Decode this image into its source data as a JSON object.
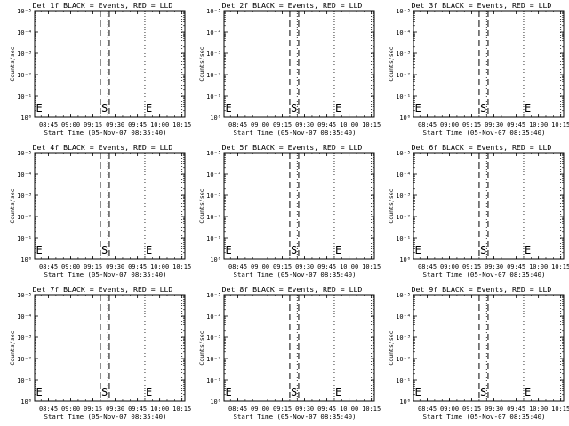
{
  "chart_data": [
    {
      "type": "line",
      "title": "Det 1f BLACK = Events, RED = LLD",
      "xlabel": "Start Time (05-Nov-07 08:35:40)",
      "ylabel": "Counts/sec",
      "xtick_labels": [
        "08:45",
        "09:00",
        "09:15",
        "09:30",
        "09:45",
        "10:00",
        "10:15"
      ],
      "ytick_labels": [
        "10⁰",
        "10⁻¹",
        "10⁻²",
        "10⁻³",
        "10⁻⁴",
        "10⁻⁵"
      ],
      "xlim": [
        "08:35:40",
        "10:17:00"
      ],
      "dotted_lines": [
        "08:35:40",
        "09:25:00",
        "09:50:00",
        "10:15:00"
      ],
      "dashed_lines": [
        "09:20:00",
        "09:26:00"
      ],
      "markers": [
        {
          "label": "E",
          "time": "08:36:00"
        },
        {
          "label": "S",
          "time": "09:20:00"
        },
        {
          "label": "E",
          "time": "09:50:00"
        }
      ],
      "series": []
    },
    {
      "type": "line",
      "title": "Det 2f BLACK = Events, RED = LLD",
      "xlabel": "Start Time (05-Nov-07 08:35:40)",
      "ylabel": "Counts/sec",
      "xtick_labels": [
        "08:45",
        "09:00",
        "09:15",
        "09:30",
        "09:45",
        "10:00",
        "10:15"
      ],
      "ytick_labels": [
        "10⁰",
        "10⁻¹",
        "10⁻²",
        "10⁻³",
        "10⁻⁴",
        "10⁻⁵"
      ],
      "xlim": [
        "08:35:40",
        "10:17:00"
      ],
      "dotted_lines": [
        "08:35:40",
        "09:25:00",
        "09:50:00",
        "10:15:00"
      ],
      "dashed_lines": [
        "09:20:00",
        "09:26:00"
      ],
      "markers": [
        {
          "label": "E",
          "time": "08:36:00"
        },
        {
          "label": "S",
          "time": "09:20:00"
        },
        {
          "label": "E",
          "time": "09:50:00"
        }
      ],
      "series": []
    },
    {
      "type": "line",
      "title": "Det 3f BLACK = Events, RED = LLD",
      "xlabel": "Start Time (05-Nov-07 08:35:40)",
      "ylabel": "Counts/sec",
      "xtick_labels": [
        "08:45",
        "09:00",
        "09:15",
        "09:30",
        "09:45",
        "10:00",
        "10:15"
      ],
      "ytick_labels": [
        "10⁰",
        "10⁻¹",
        "10⁻²",
        "10⁻³",
        "10⁻⁴",
        "10⁻⁵"
      ],
      "xlim": [
        "08:35:40",
        "10:17:00"
      ],
      "dotted_lines": [
        "08:35:40",
        "09:25:00",
        "09:50:00",
        "10:15:00"
      ],
      "dashed_lines": [
        "09:20:00",
        "09:26:00"
      ],
      "markers": [
        {
          "label": "E",
          "time": "08:36:00"
        },
        {
          "label": "S",
          "time": "09:20:00"
        },
        {
          "label": "E",
          "time": "09:50:00"
        }
      ],
      "series": []
    },
    {
      "type": "line",
      "title": "Det 4f BLACK = Events, RED = LLD",
      "xlabel": "Start Time (05-Nov-07 08:35:40)",
      "ylabel": "Counts/sec",
      "xtick_labels": [
        "08:45",
        "09:00",
        "09:15",
        "09:30",
        "09:45",
        "10:00",
        "10:15"
      ],
      "ytick_labels": [
        "10⁰",
        "10⁻¹",
        "10⁻²",
        "10⁻³",
        "10⁻⁴",
        "10⁻⁵"
      ],
      "xlim": [
        "08:35:40",
        "10:17:00"
      ],
      "dotted_lines": [
        "08:35:40",
        "09:25:00",
        "09:50:00",
        "10:15:00"
      ],
      "dashed_lines": [
        "09:20:00",
        "09:26:00"
      ],
      "markers": [
        {
          "label": "E",
          "time": "08:36:00"
        },
        {
          "label": "S",
          "time": "09:20:00"
        },
        {
          "label": "E",
          "time": "09:50:00"
        }
      ],
      "series": []
    },
    {
      "type": "line",
      "title": "Det 5f BLACK = Events, RED = LLD",
      "xlabel": "Start Time (05-Nov-07 08:35:40)",
      "ylabel": "Counts/sec",
      "xtick_labels": [
        "08:45",
        "09:00",
        "09:15",
        "09:30",
        "09:45",
        "10:00",
        "10:15"
      ],
      "ytick_labels": [
        "10⁰",
        "10⁻¹",
        "10⁻²",
        "10⁻³",
        "10⁻⁴",
        "10⁻⁵"
      ],
      "xlim": [
        "08:35:40",
        "10:17:00"
      ],
      "dotted_lines": [
        "08:35:40",
        "09:25:00",
        "09:50:00",
        "10:15:00"
      ],
      "dashed_lines": [
        "09:20:00",
        "09:26:00"
      ],
      "markers": [
        {
          "label": "E",
          "time": "08:36:00"
        },
        {
          "label": "S",
          "time": "09:20:00"
        },
        {
          "label": "E",
          "time": "09:50:00"
        }
      ],
      "series": []
    },
    {
      "type": "line",
      "title": "Det 6f BLACK = Events, RED = LLD",
      "xlabel": "Start Time (05-Nov-07 08:35:40)",
      "ylabel": "Counts/sec",
      "xtick_labels": [
        "08:45",
        "09:00",
        "09:15",
        "09:30",
        "09:45",
        "10:00",
        "10:15"
      ],
      "ytick_labels": [
        "10⁰",
        "10⁻¹",
        "10⁻²",
        "10⁻³",
        "10⁻⁴",
        "10⁻⁵"
      ],
      "xlim": [
        "08:35:40",
        "10:17:00"
      ],
      "dotted_lines": [
        "08:35:40",
        "09:25:00",
        "09:50:00",
        "10:15:00"
      ],
      "dashed_lines": [
        "09:20:00",
        "09:26:00"
      ],
      "markers": [
        {
          "label": "E",
          "time": "08:36:00"
        },
        {
          "label": "S",
          "time": "09:20:00"
        },
        {
          "label": "E",
          "time": "09:50:00"
        }
      ],
      "series": []
    },
    {
      "type": "line",
      "title": "Det 7f BLACK = Events, RED = LLD",
      "xlabel": "Start Time (05-Nov-07 08:35:40)",
      "ylabel": "Counts/sec",
      "xtick_labels": [
        "08:45",
        "09:00",
        "09:15",
        "09:30",
        "09:45",
        "10:00",
        "10:15"
      ],
      "ytick_labels": [
        "10⁰",
        "10⁻¹",
        "10⁻²",
        "10⁻³",
        "10⁻⁴",
        "10⁻⁵"
      ],
      "xlim": [
        "08:35:40",
        "10:17:00"
      ],
      "dotted_lines": [
        "08:35:40",
        "09:25:00",
        "09:50:00",
        "10:15:00"
      ],
      "dashed_lines": [
        "09:20:00",
        "09:26:00"
      ],
      "markers": [
        {
          "label": "E",
          "time": "08:36:00"
        },
        {
          "label": "S",
          "time": "09:20:00"
        },
        {
          "label": "E",
          "time": "09:50:00"
        }
      ],
      "series": []
    },
    {
      "type": "line",
      "title": "Det 8f BLACK = Events, RED = LLD",
      "xlabel": "Start Time (05-Nov-07 08:35:40)",
      "ylabel": "Counts/sec",
      "xtick_labels": [
        "08:45",
        "09:00",
        "09:15",
        "09:30",
        "09:45",
        "10:00",
        "10:15"
      ],
      "ytick_labels": [
        "10⁰",
        "10⁻¹",
        "10⁻²",
        "10⁻³",
        "10⁻⁴",
        "10⁻⁵"
      ],
      "xlim": [
        "08:35:40",
        "10:17:00"
      ],
      "dotted_lines": [
        "08:35:40",
        "09:25:00",
        "09:50:00",
        "10:15:00"
      ],
      "dashed_lines": [
        "09:20:00",
        "09:26:00"
      ],
      "markers": [
        {
          "label": "E",
          "time": "08:36:00"
        },
        {
          "label": "S",
          "time": "09:20:00"
        },
        {
          "label": "E",
          "time": "09:50:00"
        }
      ],
      "series": []
    },
    {
      "type": "line",
      "title": "Det 9f BLACK = Events, RED = LLD",
      "xlabel": "Start Time (05-Nov-07 08:35:40)",
      "ylabel": "Counts/sec",
      "xtick_labels": [
        "08:45",
        "09:00",
        "09:15",
        "09:30",
        "09:45",
        "10:00",
        "10:15"
      ],
      "ytick_labels": [
        "10⁰",
        "10⁻¹",
        "10⁻²",
        "10⁻³",
        "10⁻⁴",
        "10⁻⁵"
      ],
      "xlim": [
        "08:35:40",
        "10:17:00"
      ],
      "dotted_lines": [
        "08:35:40",
        "09:25:00",
        "09:50:00",
        "10:15:00"
      ],
      "dashed_lines": [
        "09:20:00",
        "09:26:00"
      ],
      "markers": [
        {
          "label": "E",
          "time": "08:36:00"
        },
        {
          "label": "S",
          "time": "09:20:00"
        },
        {
          "label": "E",
          "time": "09:50:00"
        }
      ],
      "series": []
    }
  ]
}
